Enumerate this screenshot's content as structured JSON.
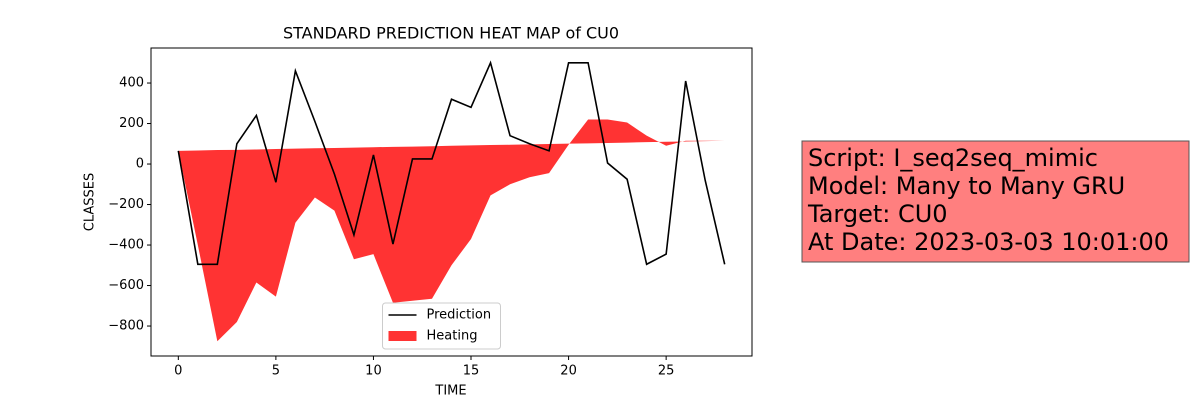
{
  "chart_data": {
    "type": "line-fill",
    "title": "STANDARD PREDICTION HEAT MAP of CU0",
    "x_label": "TIME",
    "y_label": "CLASSES",
    "x": [
      0,
      1,
      2,
      3,
      4,
      5,
      6,
      7,
      8,
      9,
      10,
      11,
      12,
      13,
      14,
      15,
      16,
      17,
      18,
      19,
      20,
      21,
      22,
      23,
      24,
      25,
      26,
      27,
      28
    ],
    "series": [
      {
        "name": "Prediction",
        "color": "#000000",
        "kind": "line",
        "values": [
          65,
          -495,
          -495,
          100,
          240,
          -90,
          460,
          210,
          -50,
          -350,
          45,
          -395,
          25,
          25,
          320,
          280,
          500,
          140,
          100,
          65,
          500,
          500,
          5,
          -75,
          -495,
          -445,
          410,
          -80,
          -495
        ]
      },
      {
        "name": "Heating",
        "color": "#ff0000",
        "kind": "area",
        "values": [
          65,
          -400,
          -875,
          -780,
          -585,
          -655,
          -290,
          -165,
          -230,
          -470,
          -445,
          -685,
          -675,
          -665,
          -500,
          -370,
          -155,
          -100,
          -65,
          -45,
          95,
          220,
          220,
          205,
          140,
          90,
          115,
          115,
          115
        ],
        "base": [
          65,
          67,
          69,
          70,
          72,
          74,
          76,
          78,
          79,
          81,
          83,
          85,
          86,
          88,
          90,
          92,
          94,
          95,
          97,
          99,
          101,
          102,
          104,
          106,
          108,
          110,
          111,
          113,
          115
        ]
      }
    ],
    "xlim": [
      -1.4,
      29.4
    ],
    "ylim": [
      -948,
      573
    ],
    "xticks": [
      0,
      5,
      10,
      15,
      20,
      25
    ],
    "yticks": [
      {
        "value": -800,
        "label": "−800"
      },
      {
        "value": -600,
        "label": "−600"
      },
      {
        "value": -400,
        "label": "−400"
      },
      {
        "value": -200,
        "label": "−200"
      },
      0,
      200,
      400
    ],
    "legend": "lower center",
    "annotation": {
      "lines": [
        "Script: I_seq2seq_mimic",
        "Model: Many to Many GRU",
        "Target: CU0",
        "At Date: 2023-03-03 10:01:00"
      ],
      "color": "#ff7f7f"
    }
  }
}
